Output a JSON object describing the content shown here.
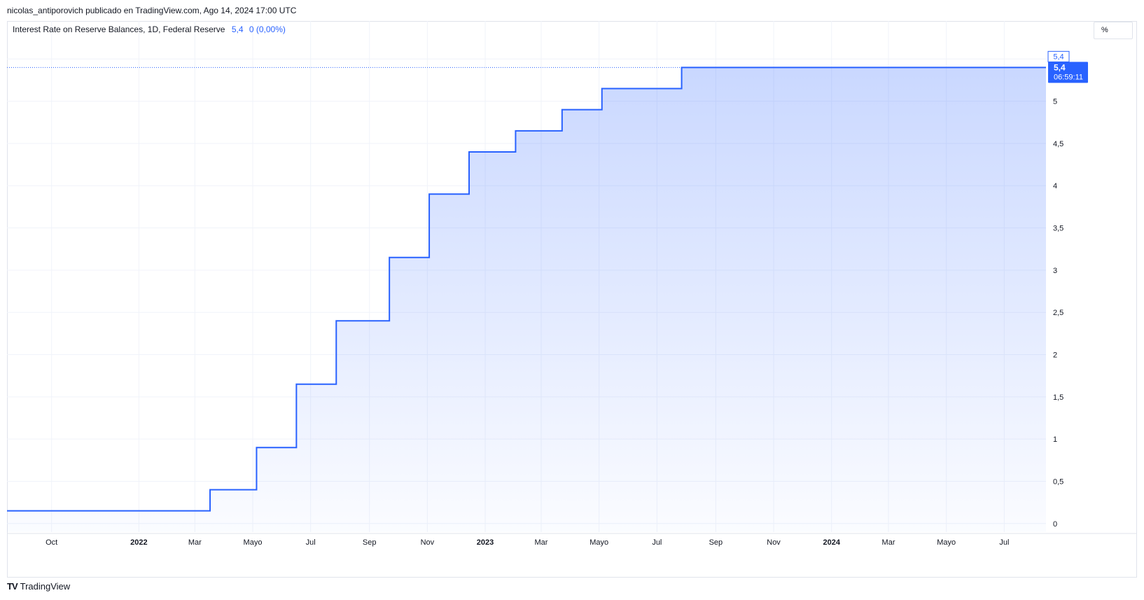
{
  "header": {
    "publisher": "nicolas_antiporovich publicado en TradingView.com, Ago 14, 2024 17:00 UTC"
  },
  "legend": {
    "symbol": "Interest Rate on Reserve Balances, 1D, Federal Reserve",
    "value": "5,4",
    "change": "0 (0,00%)"
  },
  "unit_label": "%",
  "price_tags": {
    "top": "5,4",
    "current": "5,4",
    "countdown": "06:59:11"
  },
  "footer": {
    "brand": "TradingView"
  },
  "colors": {
    "line": "#2962ff",
    "grid": "#f0f3fa",
    "axis_text": "#131722"
  },
  "chart_data": {
    "type": "area",
    "title": "Interest Rate on Reserve Balances, 1D, Federal Reserve",
    "xlabel": "",
    "ylabel": "",
    "step": true,
    "grid": true,
    "legend_position": "top-left",
    "x_range": [
      "2021-08-15",
      "2024-08-14"
    ],
    "ylim": [
      -0.35,
      5.95
    ],
    "y_ticks": [
      0,
      0.5,
      1,
      1.5,
      2,
      2.5,
      3,
      3.5,
      4,
      4.5,
      5
    ],
    "y_tick_labels": [
      "0",
      "0,5",
      "1",
      "1,5",
      "2",
      "2,5",
      "3",
      "3,5",
      "4",
      "4,5",
      "5"
    ],
    "x_ticks": [
      {
        "date": "2021-10-01",
        "label": "Oct",
        "bold": false
      },
      {
        "date": "2022-01-01",
        "label": "2022",
        "bold": true
      },
      {
        "date": "2022-03-01",
        "label": "Mar",
        "bold": false
      },
      {
        "date": "2022-05-01",
        "label": "Mayo",
        "bold": false
      },
      {
        "date": "2022-07-01",
        "label": "Jul",
        "bold": false
      },
      {
        "date": "2022-09-01",
        "label": "Sep",
        "bold": false
      },
      {
        "date": "2022-11-01",
        "label": "Nov",
        "bold": false
      },
      {
        "date": "2023-01-01",
        "label": "2023",
        "bold": true
      },
      {
        "date": "2023-03-01",
        "label": "Mar",
        "bold": false
      },
      {
        "date": "2023-05-01",
        "label": "Mayo",
        "bold": false
      },
      {
        "date": "2023-07-01",
        "label": "Jul",
        "bold": false
      },
      {
        "date": "2023-09-01",
        "label": "Sep",
        "bold": false
      },
      {
        "date": "2023-11-01",
        "label": "Nov",
        "bold": false
      },
      {
        "date": "2024-01-01",
        "label": "2024",
        "bold": true
      },
      {
        "date": "2024-03-01",
        "label": "Mar",
        "bold": false
      },
      {
        "date": "2024-05-01",
        "label": "Mayo",
        "bold": false
      },
      {
        "date": "2024-07-01",
        "label": "Jul",
        "bold": false
      }
    ],
    "series": [
      {
        "points": [
          {
            "x": "2021-08-15",
            "y": 0.15
          },
          {
            "x": "2022-03-17",
            "y": 0.4
          },
          {
            "x": "2022-05-05",
            "y": 0.9
          },
          {
            "x": "2022-06-16",
            "y": 1.65
          },
          {
            "x": "2022-07-28",
            "y": 2.4
          },
          {
            "x": "2022-09-22",
            "y": 3.15
          },
          {
            "x": "2022-11-03",
            "y": 3.9
          },
          {
            "x": "2022-12-15",
            "y": 4.4
          },
          {
            "x": "2023-02-02",
            "y": 4.65
          },
          {
            "x": "2023-03-23",
            "y": 4.9
          },
          {
            "x": "2023-05-04",
            "y": 5.15
          },
          {
            "x": "2023-07-27",
            "y": 5.4
          },
          {
            "x": "2024-08-14",
            "y": 5.4
          }
        ]
      }
    ],
    "last_value": 5.4
  }
}
